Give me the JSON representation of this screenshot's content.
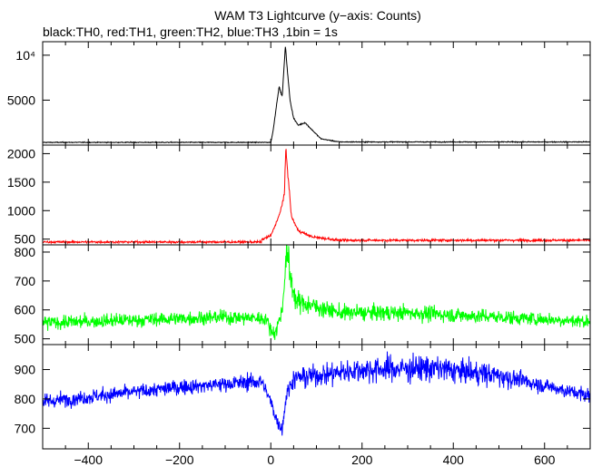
{
  "title": "WAM T3 Lightcurve (y−axis: Counts)",
  "subtitle": "black:TH0, red:TH1, green:TH2, blue:TH3 ,1bin = 1s",
  "chart_data": [
    {
      "type": "line",
      "series": [
        {
          "name": "TH0",
          "color": "#000000"
        }
      ],
      "x_range": [
        -500,
        700
      ],
      "ylim": [
        0,
        11500
      ],
      "y_ticks": [
        {
          "value": 5000,
          "label": "5000"
        },
        {
          "value": 10000,
          "label": "10⁴"
        }
      ],
      "baseline": 300,
      "noise": 60,
      "features": [
        {
          "x": 0,
          "y": 300
        },
        {
          "x": 5,
          "y": 1600
        },
        {
          "x": 10,
          "y": 3500
        },
        {
          "x": 18,
          "y": 6500
        },
        {
          "x": 25,
          "y": 5400
        },
        {
          "x": 32,
          "y": 11000
        },
        {
          "x": 37,
          "y": 8000
        },
        {
          "x": 42,
          "y": 5000
        },
        {
          "x": 50,
          "y": 3000
        },
        {
          "x": 60,
          "y": 2200
        },
        {
          "x": 75,
          "y": 2500
        },
        {
          "x": 90,
          "y": 1700
        },
        {
          "x": 110,
          "y": 700
        },
        {
          "x": 150,
          "y": 350
        }
      ]
    },
    {
      "type": "line",
      "series": [
        {
          "name": "TH1",
          "color": "#ff0000"
        }
      ],
      "x_range": [
        -500,
        700
      ],
      "ylim": [
        400,
        2150
      ],
      "y_ticks": [
        {
          "value": 500,
          "label": "500"
        },
        {
          "value": 1000,
          "label": "1000"
        },
        {
          "value": 1500,
          "label": "1500"
        },
        {
          "value": 2000,
          "label": "2000"
        }
      ],
      "baseline": 450,
      "noise": 25,
      "features": [
        {
          "x": -20,
          "y": 490
        },
        {
          "x": 0,
          "y": 560
        },
        {
          "x": 20,
          "y": 950
        },
        {
          "x": 30,
          "y": 1300
        },
        {
          "x": 33,
          "y": 2100
        },
        {
          "x": 37,
          "y": 1700
        },
        {
          "x": 45,
          "y": 900
        },
        {
          "x": 60,
          "y": 650
        },
        {
          "x": 90,
          "y": 540
        },
        {
          "x": 150,
          "y": 480
        }
      ]
    },
    {
      "type": "line",
      "series": [
        {
          "name": "TH2",
          "color": "#00ff00"
        }
      ],
      "x_range": [
        -500,
        700
      ],
      "ylim": [
        480,
        825
      ],
      "y_ticks": [
        {
          "value": 500,
          "label": "500"
        },
        {
          "value": 600,
          "label": "600"
        },
        {
          "value": 700,
          "label": "700"
        },
        {
          "value": 800,
          "label": "800"
        }
      ],
      "baseline": 570,
      "noise": 30,
      "features": [
        {
          "x": -500,
          "y": 555
        },
        {
          "x": -100,
          "y": 575
        },
        {
          "x": -10,
          "y": 570
        },
        {
          "x": 0,
          "y": 530
        },
        {
          "x": 10,
          "y": 520
        },
        {
          "x": 25,
          "y": 600
        },
        {
          "x": 35,
          "y": 810
        },
        {
          "x": 42,
          "y": 720
        },
        {
          "x": 55,
          "y": 630
        },
        {
          "x": 150,
          "y": 590
        },
        {
          "x": 300,
          "y": 590
        },
        {
          "x": 700,
          "y": 560
        }
      ]
    },
    {
      "type": "line",
      "series": [
        {
          "name": "TH3",
          "color": "#0000ff"
        }
      ],
      "x_range": [
        -500,
        700
      ],
      "ylim": [
        630,
        985
      ],
      "y_ticks": [
        {
          "value": 700,
          "label": "700"
        },
        {
          "value": 800,
          "label": "800"
        },
        {
          "value": 900,
          "label": "900"
        }
      ],
      "x_ticks": [
        {
          "value": -400,
          "label": "−400"
        },
        {
          "value": -200,
          "label": "−200"
        },
        {
          "value": 0,
          "label": "0"
        },
        {
          "value": 200,
          "label": "200"
        },
        {
          "value": 400,
          "label": "400"
        },
        {
          "value": 600,
          "label": "600"
        }
      ],
      "baseline": 850,
      "noise": 32,
      "features": [
        {
          "x": -500,
          "y": 790
        },
        {
          "x": -200,
          "y": 840
        },
        {
          "x": -20,
          "y": 860
        },
        {
          "x": 0,
          "y": 790
        },
        {
          "x": 15,
          "y": 720
        },
        {
          "x": 25,
          "y": 700
        },
        {
          "x": 35,
          "y": 820
        },
        {
          "x": 50,
          "y": 870
        },
        {
          "x": 200,
          "y": 900
        },
        {
          "x": 350,
          "y": 905
        },
        {
          "x": 500,
          "y": 880
        },
        {
          "x": 700,
          "y": 810
        }
      ]
    }
  ]
}
